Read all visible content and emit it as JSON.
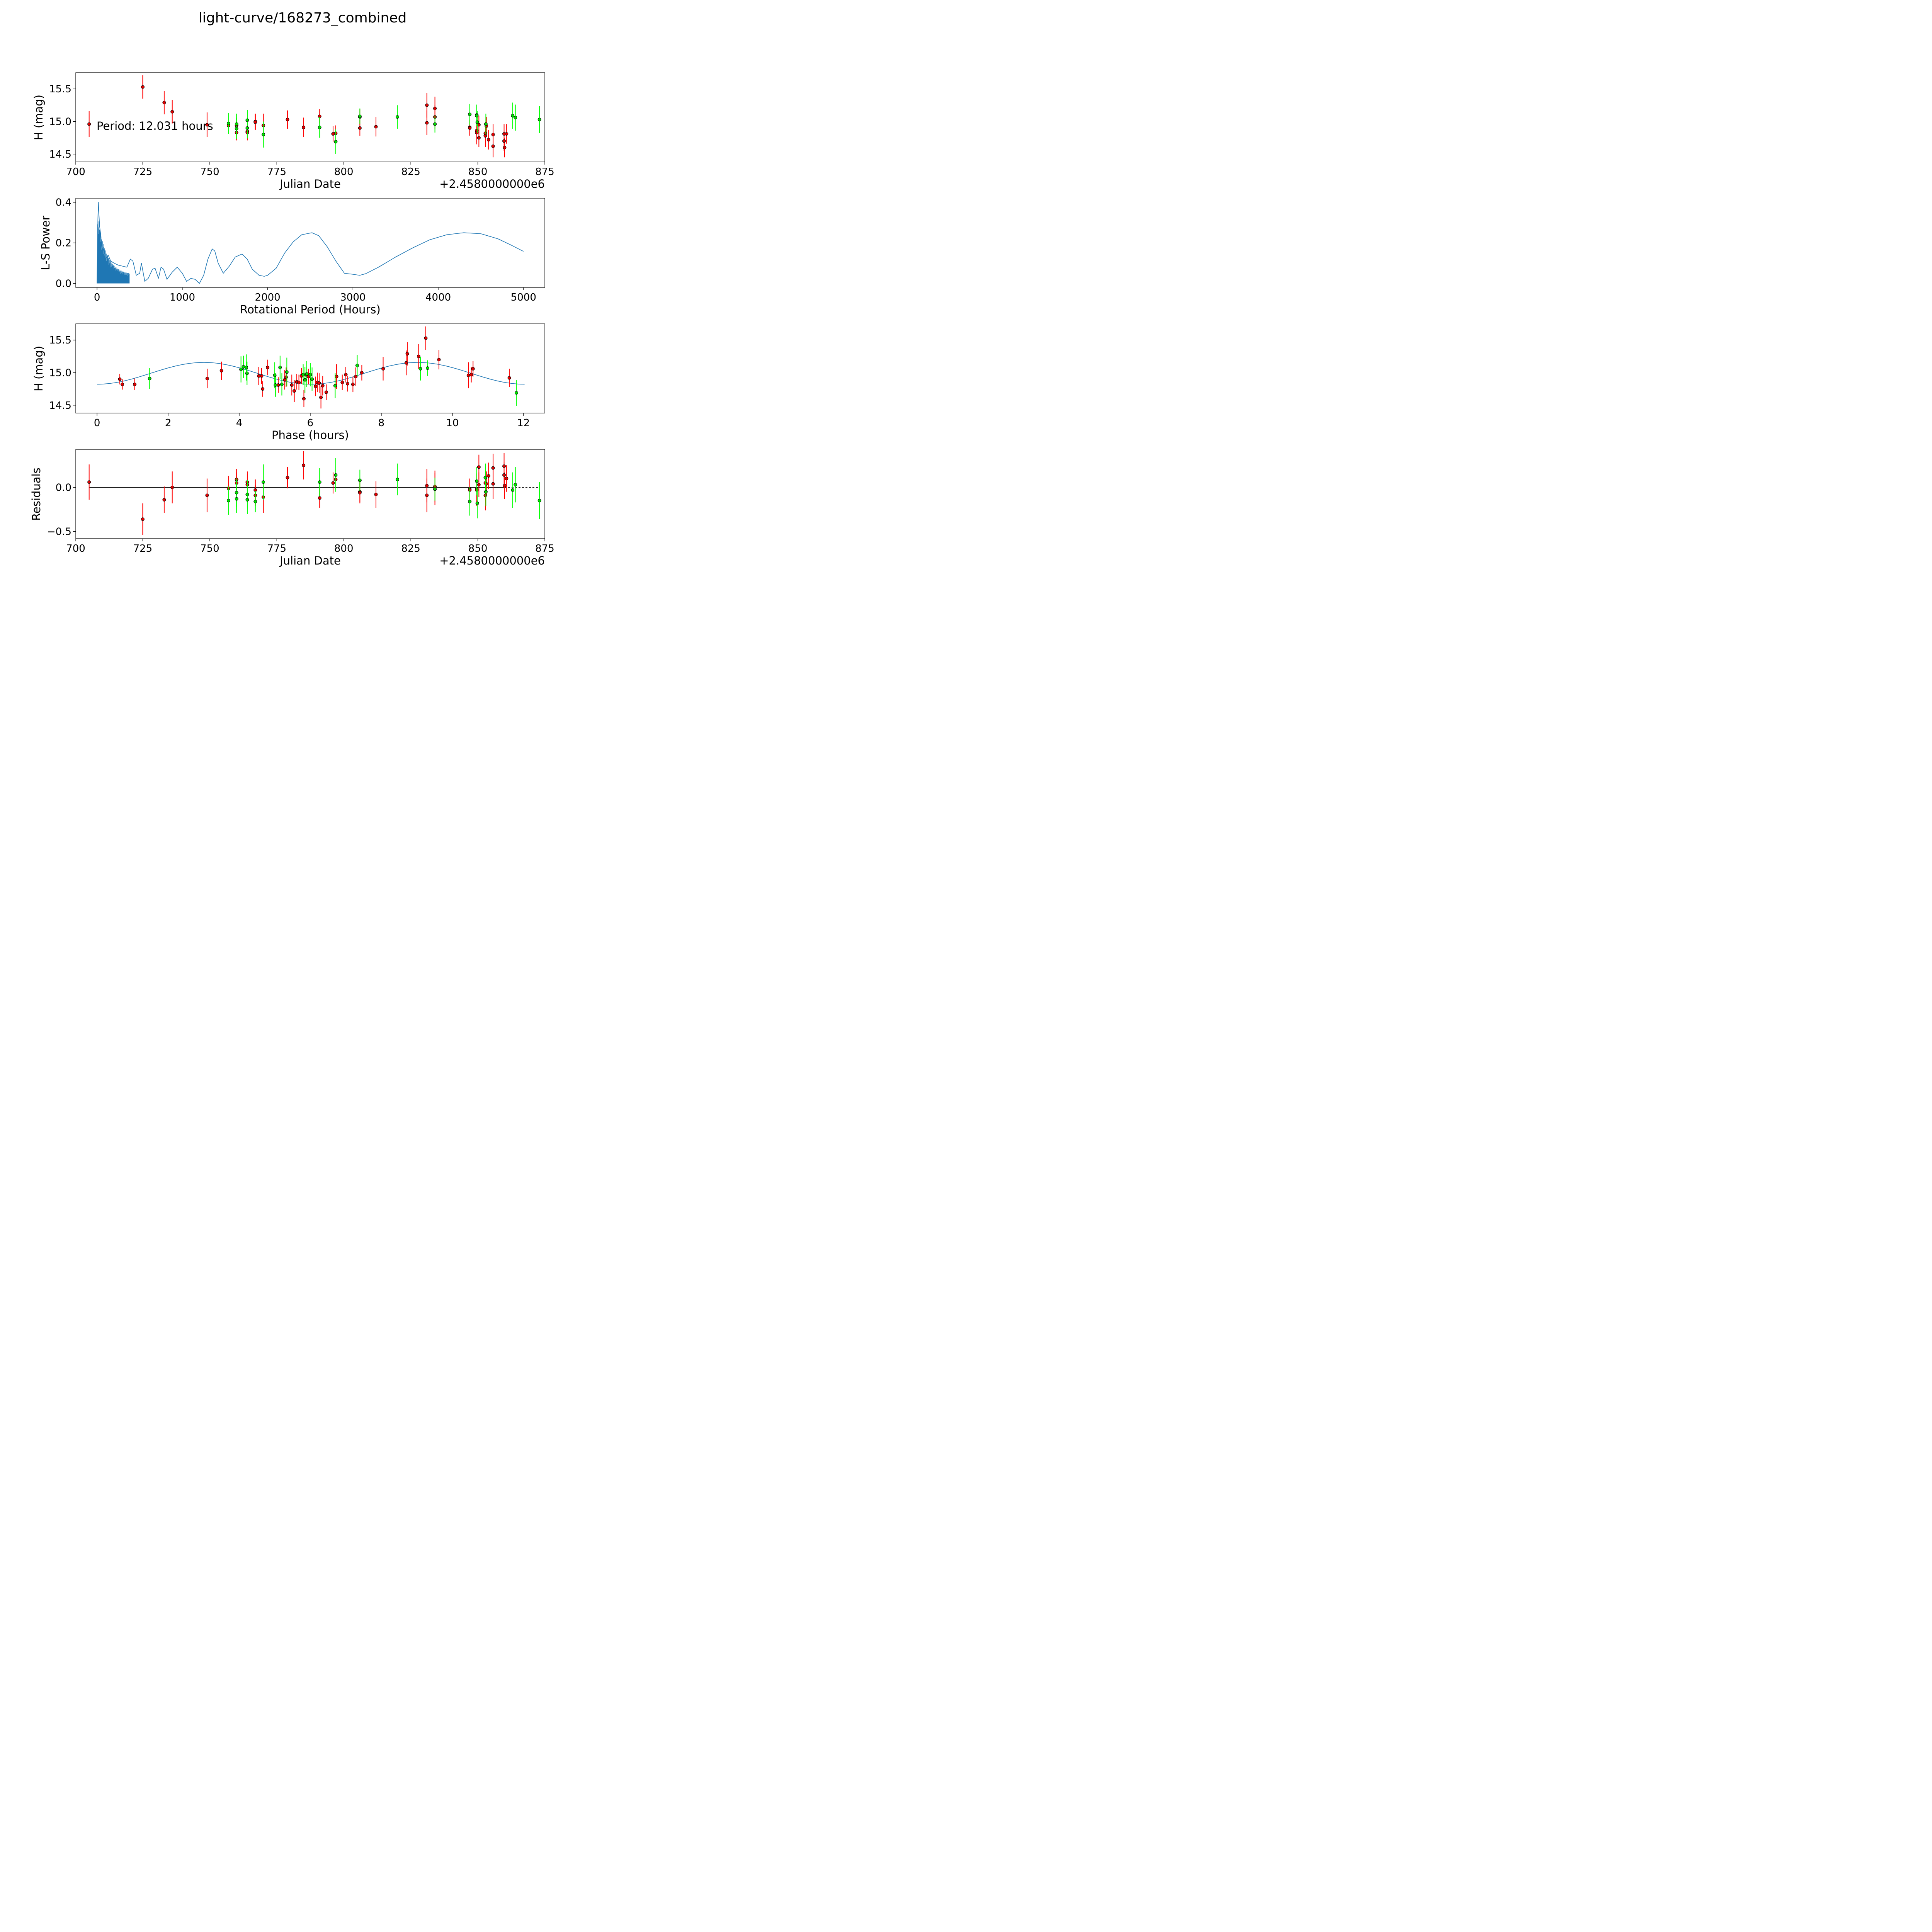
{
  "title": "light-curve/168273_combined",
  "colors": {
    "red": "#ff0000",
    "green": "#00ff00",
    "red_face": "#e00000",
    "green_face": "#00e000",
    "line": "#1f77b4",
    "edge": "#000000"
  },
  "chart_data": [
    {
      "id": "lightcurve",
      "type": "scatter",
      "xlabel": "Julian Date",
      "ylabel": "H (mag)",
      "offset_text": "+2.4580000000e6",
      "annotation": "Period: 12.031 hours",
      "xlim": [
        700,
        875
      ],
      "ylim": [
        14.38,
        15.75
      ],
      "xticks": [
        700,
        725,
        750,
        775,
        800,
        825,
        850,
        875
      ],
      "yticks": [
        14.5,
        15.0,
        15.5
      ],
      "xtick_labels": [
        "700",
        "725",
        "750",
        "775",
        "800",
        "825",
        "850",
        "875"
      ],
      "ytick_labels": [
        "14.5",
        "15.0",
        "15.5"
      ],
      "series": [
        {
          "name": "red",
          "x": [
            705,
            725,
            733,
            736,
            749,
            757,
            760,
            760,
            764,
            764,
            767,
            767,
            770,
            779,
            785,
            791,
            796,
            797,
            806,
            806,
            812,
            831,
            831,
            834,
            834,
            847,
            847,
            849.6,
            849.6,
            850.4,
            850.4,
            852.8,
            852.8,
            853.2,
            854,
            855.7,
            855.7,
            859.8,
            859.8,
            860,
            860.7
          ],
          "y": [
            14.96,
            15.53,
            15.29,
            15.15,
            14.95,
            14.94,
            14.94,
            14.83,
            14.85,
            14.83,
            15.0,
            14.99,
            14.94,
            15.03,
            14.91,
            15.08,
            14.81,
            14.82,
            15.07,
            14.9,
            14.92,
            15.25,
            14.98,
            15.2,
            15.07,
            14.91,
            14.9,
            14.86,
            14.83,
            14.95,
            14.75,
            14.78,
            14.82,
            14.93,
            14.72,
            14.8,
            14.62,
            14.81,
            14.7,
            14.6,
            14.81
          ],
          "err": [
            0.2,
            0.18,
            0.18,
            0.18,
            0.19,
            0.12,
            0.12,
            0.12,
            0.12,
            0.12,
            0.12,
            0.12,
            0.18,
            0.14,
            0.15,
            0.11,
            0.12,
            0.12,
            0.12,
            0.12,
            0.15,
            0.19,
            0.19,
            0.18,
            0.18,
            0.12,
            0.12,
            0.18,
            0.18,
            0.14,
            0.14,
            0.17,
            0.17,
            0.14,
            0.15,
            0.16,
            0.17,
            0.15,
            0.15,
            0.15,
            0.15
          ]
        },
        {
          "name": "green",
          "x": [
            757,
            760,
            760,
            764,
            764,
            770,
            791,
            797,
            806,
            820,
            834,
            847,
            849.6,
            849.6,
            849.8,
            853,
            863,
            864,
            873
          ],
          "y": [
            14.97,
            14.96,
            14.89,
            15.02,
            14.9,
            14.8,
            14.91,
            14.69,
            15.08,
            15.07,
            14.96,
            15.11,
            15.1,
            15.09,
            14.99,
            14.96,
            15.09,
            15.06,
            15.03
          ],
          "err": [
            0.16,
            0.16,
            0.16,
            0.16,
            0.16,
            0.2,
            0.16,
            0.19,
            0.12,
            0.18,
            0.13,
            0.16,
            0.16,
            0.16,
            0.17,
            0.16,
            0.2,
            0.2,
            0.21
          ]
        }
      ]
    },
    {
      "id": "periodogram",
      "type": "line",
      "xlabel": "Rotational Period (Hours)",
      "ylabel": "L-S Power",
      "xlim": [
        -250,
        5250
      ],
      "ylim": [
        -0.02,
        0.42
      ],
      "xticks": [
        0,
        1000,
        2000,
        3000,
        4000,
        5000
      ],
      "yticks": [
        0.0,
        0.2,
        0.4
      ],
      "xtick_labels": [
        "0",
        "1000",
        "2000",
        "3000",
        "4000",
        "5000"
      ],
      "ytick_labels": [
        "0.0",
        "0.2",
        "0.4"
      ],
      "x": [
        0,
        5,
        10,
        15,
        20,
        30,
        40,
        50,
        60,
        80,
        100,
        130,
        160,
        200,
        250,
        300,
        350,
        390,
        420,
        460,
        500,
        520,
        560,
        600,
        650,
        680,
        720,
        750,
        780,
        820,
        880,
        940,
        1000,
        1050,
        1100,
        1150,
        1200,
        1250,
        1300,
        1350,
        1380,
        1420,
        1480,
        1550,
        1620,
        1700,
        1760,
        1820,
        1900,
        1960,
        2000,
        2100,
        2200,
        2300,
        2400,
        2520,
        2600,
        2700,
        2800,
        2900,
        3000,
        3080,
        3150,
        3300,
        3500,
        3700,
        3900,
        4100,
        4300,
        4500,
        4700,
        4850,
        5000
      ],
      "y": [
        0.0,
        0.21,
        0.32,
        0.4,
        0.36,
        0.28,
        0.25,
        0.2,
        0.15,
        0.17,
        0.12,
        0.14,
        0.11,
        0.1,
        0.09,
        0.085,
        0.08,
        0.12,
        0.11,
        0.04,
        0.05,
        0.1,
        0.01,
        0.025,
        0.07,
        0.075,
        0.025,
        0.08,
        0.07,
        0.02,
        0.055,
        0.08,
        0.05,
        0.01,
        0.025,
        0.02,
        0.0,
        0.04,
        0.12,
        0.17,
        0.16,
        0.1,
        0.05,
        0.085,
        0.13,
        0.145,
        0.12,
        0.07,
        0.04,
        0.035,
        0.04,
        0.075,
        0.15,
        0.205,
        0.24,
        0.25,
        0.235,
        0.18,
        0.11,
        0.05,
        0.045,
        0.04,
        0.048,
        0.08,
        0.13,
        0.175,
        0.215,
        0.24,
        0.25,
        0.245,
        0.22,
        0.19,
        0.158
      ]
    },
    {
      "id": "phased",
      "type": "scatter",
      "xlabel": "Phase (hours)",
      "ylabel": "H (mag)",
      "xlim": [
        -0.6,
        12.6
      ],
      "ylim": [
        14.38,
        15.75
      ],
      "xticks": [
        0,
        2,
        4,
        6,
        8,
        10,
        12
      ],
      "yticks": [
        14.5,
        15.0,
        15.5
      ],
      "xtick_labels": [
        "0",
        "2",
        "4",
        "6",
        "8",
        "10",
        "12"
      ],
      "ytick_labels": [
        "14.5",
        "15.0",
        "15.5"
      ],
      "model": {
        "name": "sinusoid-fit",
        "mean": 14.99,
        "amplitude": 0.167,
        "period": 6.0155,
        "minimum_at": 0.0,
        "x_range": [
          0,
          12.03
        ]
      },
      "series": [
        {
          "name": "red",
          "x": [
            0.64,
            0.71,
            1.06,
            3.1,
            3.5,
            4.55,
            4.63,
            4.66,
            4.8,
            5.1,
            5.28,
            5.32,
            5.48,
            5.55,
            5.62,
            5.68,
            5.75,
            5.82,
            5.9,
            5.95,
            6.15,
            6.2,
            6.25,
            6.3,
            6.35,
            6.45,
            6.74,
            6.9,
            7.0,
            7.05,
            7.2,
            7.28,
            7.45,
            8.05,
            8.7,
            8.73,
            9.05,
            9.25,
            9.62,
            10.45,
            10.53,
            10.58,
            11.6
          ],
          "y": [
            14.9,
            14.82,
            14.82,
            14.91,
            15.03,
            14.95,
            14.95,
            14.75,
            15.08,
            14.81,
            14.89,
            14.93,
            14.81,
            14.72,
            14.86,
            14.85,
            14.95,
            14.6,
            14.96,
            14.94,
            14.79,
            14.85,
            14.84,
            14.62,
            14.8,
            14.7,
            14.94,
            14.85,
            14.97,
            14.83,
            14.82,
            14.94,
            15.0,
            15.06,
            15.15,
            15.29,
            15.25,
            15.53,
            15.2,
            14.96,
            14.97,
            15.06,
            14.92
          ],
          "err": [
            0.08,
            0.08,
            0.09,
            0.15,
            0.14,
            0.14,
            0.12,
            0.12,
            0.12,
            0.12,
            0.15,
            0.15,
            0.16,
            0.17,
            0.12,
            0.12,
            0.12,
            0.13,
            0.12,
            0.12,
            0.15,
            0.15,
            0.15,
            0.17,
            0.15,
            0.12,
            0.19,
            0.12,
            0.12,
            0.12,
            0.12,
            0.14,
            0.12,
            0.18,
            0.19,
            0.18,
            0.19,
            0.18,
            0.15,
            0.2,
            0.12,
            0.12,
            0.14
          ]
        },
        {
          "name": "green",
          "x": [
            1.48,
            4.05,
            4.12,
            4.2,
            4.22,
            5.0,
            5.02,
            5.15,
            5.2,
            5.34,
            5.8,
            5.85,
            5.9,
            6.0,
            6.05,
            6.7,
            7.32,
            9.1,
            9.3,
            11.8
          ],
          "y": [
            14.91,
            15.05,
            15.09,
            15.08,
            14.99,
            14.96,
            14.81,
            15.08,
            14.82,
            15.01,
            14.97,
            14.89,
            14.98,
            14.97,
            14.9,
            14.8,
            15.11,
            15.06,
            15.07,
            14.69
          ],
          "err": [
            0.16,
            0.2,
            0.17,
            0.2,
            0.18,
            0.2,
            0.18,
            0.18,
            0.17,
            0.22,
            0.16,
            0.2,
            0.2,
            0.18,
            0.18,
            0.19,
            0.16,
            0.18,
            0.12,
            0.2
          ]
        }
      ]
    },
    {
      "id": "residuals",
      "type": "scatter",
      "xlabel": "Julian Date",
      "ylabel": "Residuals",
      "offset_text": "+2.4580000000e6",
      "xlim": [
        700,
        875
      ],
      "ylim": [
        -0.58,
        0.43
      ],
      "xticks": [
        700,
        725,
        750,
        775,
        800,
        825,
        850,
        875
      ],
      "yticks": [
        -0.5,
        0.0
      ],
      "xtick_labels": [
        "700",
        "725",
        "750",
        "775",
        "800",
        "825",
        "850",
        "875"
      ],
      "ytick_labels": [
        "−0.5",
        "0.0"
      ],
      "zero_line": {
        "solid_to": 860,
        "dashed_to": 873
      },
      "series": [
        {
          "name": "red",
          "x": [
            705,
            725,
            733,
            736,
            749,
            757,
            760,
            760,
            764,
            764,
            767,
            767,
            770,
            779,
            785,
            791,
            796,
            797,
            806,
            806,
            812,
            831,
            831,
            834,
            834,
            847,
            847,
            849.6,
            849.6,
            850.4,
            850.4,
            852.8,
            852.8,
            853.2,
            854,
            855.7,
            855.7,
            859.8,
            859.8,
            860,
            860.7
          ],
          "y": [
            0.06,
            -0.36,
            -0.14,
            0.0,
            -0.09,
            -0.01,
            0.09,
            0.05,
            0.06,
            0.03,
            -0.03,
            -0.09,
            -0.11,
            0.11,
            0.25,
            -0.12,
            0.05,
            0.09,
            -0.05,
            -0.06,
            -0.08,
            0.02,
            -0.09,
            0.01,
            -0.02,
            -0.02,
            -0.03,
            -0.02,
            -0.03,
            0.23,
            0.03,
            0.05,
            -0.09,
            0.04,
            0.13,
            0.22,
            0.04,
            0.24,
            0.14,
            0.02,
            0.1
          ],
          "err": [
            0.2,
            0.18,
            0.15,
            0.18,
            0.19,
            0.14,
            0.12,
            0.12,
            0.12,
            0.12,
            0.12,
            0.12,
            0.18,
            0.12,
            0.16,
            0.11,
            0.12,
            0.12,
            0.12,
            0.12,
            0.15,
            0.19,
            0.19,
            0.18,
            0.18,
            0.12,
            0.12,
            0.18,
            0.18,
            0.14,
            0.14,
            0.17,
            0.17,
            0.14,
            0.15,
            0.16,
            0.17,
            0.15,
            0.15,
            0.15,
            0.15
          ]
        },
        {
          "name": "green",
          "x": [
            757,
            760,
            760,
            764,
            764,
            767,
            770,
            791,
            797,
            806,
            820,
            834,
            847,
            849.6,
            849.8,
            852.8,
            853,
            863,
            864,
            873
          ],
          "y": [
            -0.15,
            -0.06,
            -0.13,
            -0.08,
            -0.14,
            -0.16,
            0.06,
            0.06,
            0.14,
            0.08,
            0.09,
            -0.02,
            -0.16,
            0.07,
            -0.18,
            0.11,
            -0.05,
            -0.03,
            0.03,
            -0.15
          ],
          "err": [
            0.16,
            0.16,
            0.16,
            0.16,
            0.16,
            0.12,
            0.2,
            0.16,
            0.19,
            0.12,
            0.18,
            0.13,
            0.16,
            0.16,
            0.17,
            0.16,
            0.16,
            0.2,
            0.2,
            0.21
          ]
        }
      ]
    }
  ]
}
